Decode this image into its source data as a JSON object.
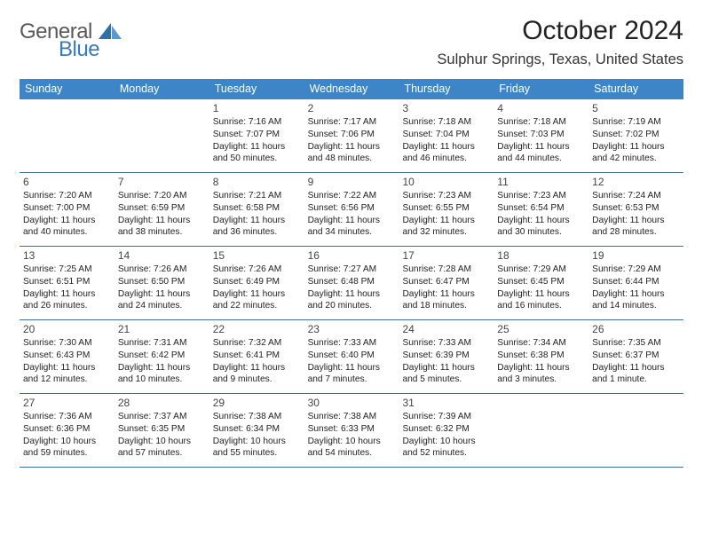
{
  "logo": {
    "word1": "General",
    "word2": "Blue"
  },
  "header": {
    "month_title": "October 2024",
    "location": "Sulphur Springs, Texas, United States"
  },
  "day_headers": [
    "Sunday",
    "Monday",
    "Tuesday",
    "Wednesday",
    "Thursday",
    "Friday",
    "Saturday"
  ],
  "colors": {
    "header_bg": "#3d85c6",
    "header_text": "#ffffff",
    "week_border": "#3d6d9a",
    "logo_general": "#5a5a5a",
    "logo_blue": "#3a7ab8",
    "text": "#222222",
    "daynum": "#444444",
    "background": "#ffffff"
  },
  "typography": {
    "month_title_fontsize": 30,
    "location_fontsize": 16.5,
    "header_cell_fontsize": 12.5,
    "daynum_fontsize": 12,
    "body_fontsize": 10.2,
    "logo_fontsize": 24
  },
  "weeks": [
    [
      null,
      null,
      {
        "num": "1",
        "sunrise": "Sunrise: 7:16 AM",
        "sunset": "Sunset: 7:07 PM",
        "day1": "Daylight: 11 hours",
        "day2": "and 50 minutes."
      },
      {
        "num": "2",
        "sunrise": "Sunrise: 7:17 AM",
        "sunset": "Sunset: 7:06 PM",
        "day1": "Daylight: 11 hours",
        "day2": "and 48 minutes."
      },
      {
        "num": "3",
        "sunrise": "Sunrise: 7:18 AM",
        "sunset": "Sunset: 7:04 PM",
        "day1": "Daylight: 11 hours",
        "day2": "and 46 minutes."
      },
      {
        "num": "4",
        "sunrise": "Sunrise: 7:18 AM",
        "sunset": "Sunset: 7:03 PM",
        "day1": "Daylight: 11 hours",
        "day2": "and 44 minutes."
      },
      {
        "num": "5",
        "sunrise": "Sunrise: 7:19 AM",
        "sunset": "Sunset: 7:02 PM",
        "day1": "Daylight: 11 hours",
        "day2": "and 42 minutes."
      }
    ],
    [
      {
        "num": "6",
        "sunrise": "Sunrise: 7:20 AM",
        "sunset": "Sunset: 7:00 PM",
        "day1": "Daylight: 11 hours",
        "day2": "and 40 minutes."
      },
      {
        "num": "7",
        "sunrise": "Sunrise: 7:20 AM",
        "sunset": "Sunset: 6:59 PM",
        "day1": "Daylight: 11 hours",
        "day2": "and 38 minutes."
      },
      {
        "num": "8",
        "sunrise": "Sunrise: 7:21 AM",
        "sunset": "Sunset: 6:58 PM",
        "day1": "Daylight: 11 hours",
        "day2": "and 36 minutes."
      },
      {
        "num": "9",
        "sunrise": "Sunrise: 7:22 AM",
        "sunset": "Sunset: 6:56 PM",
        "day1": "Daylight: 11 hours",
        "day2": "and 34 minutes."
      },
      {
        "num": "10",
        "sunrise": "Sunrise: 7:23 AM",
        "sunset": "Sunset: 6:55 PM",
        "day1": "Daylight: 11 hours",
        "day2": "and 32 minutes."
      },
      {
        "num": "11",
        "sunrise": "Sunrise: 7:23 AM",
        "sunset": "Sunset: 6:54 PM",
        "day1": "Daylight: 11 hours",
        "day2": "and 30 minutes."
      },
      {
        "num": "12",
        "sunrise": "Sunrise: 7:24 AM",
        "sunset": "Sunset: 6:53 PM",
        "day1": "Daylight: 11 hours",
        "day2": "and 28 minutes."
      }
    ],
    [
      {
        "num": "13",
        "sunrise": "Sunrise: 7:25 AM",
        "sunset": "Sunset: 6:51 PM",
        "day1": "Daylight: 11 hours",
        "day2": "and 26 minutes."
      },
      {
        "num": "14",
        "sunrise": "Sunrise: 7:26 AM",
        "sunset": "Sunset: 6:50 PM",
        "day1": "Daylight: 11 hours",
        "day2": "and 24 minutes."
      },
      {
        "num": "15",
        "sunrise": "Sunrise: 7:26 AM",
        "sunset": "Sunset: 6:49 PM",
        "day1": "Daylight: 11 hours",
        "day2": "and 22 minutes."
      },
      {
        "num": "16",
        "sunrise": "Sunrise: 7:27 AM",
        "sunset": "Sunset: 6:48 PM",
        "day1": "Daylight: 11 hours",
        "day2": "and 20 minutes."
      },
      {
        "num": "17",
        "sunrise": "Sunrise: 7:28 AM",
        "sunset": "Sunset: 6:47 PM",
        "day1": "Daylight: 11 hours",
        "day2": "and 18 minutes."
      },
      {
        "num": "18",
        "sunrise": "Sunrise: 7:29 AM",
        "sunset": "Sunset: 6:45 PM",
        "day1": "Daylight: 11 hours",
        "day2": "and 16 minutes."
      },
      {
        "num": "19",
        "sunrise": "Sunrise: 7:29 AM",
        "sunset": "Sunset: 6:44 PM",
        "day1": "Daylight: 11 hours",
        "day2": "and 14 minutes."
      }
    ],
    [
      {
        "num": "20",
        "sunrise": "Sunrise: 7:30 AM",
        "sunset": "Sunset: 6:43 PM",
        "day1": "Daylight: 11 hours",
        "day2": "and 12 minutes."
      },
      {
        "num": "21",
        "sunrise": "Sunrise: 7:31 AM",
        "sunset": "Sunset: 6:42 PM",
        "day1": "Daylight: 11 hours",
        "day2": "and 10 minutes."
      },
      {
        "num": "22",
        "sunrise": "Sunrise: 7:32 AM",
        "sunset": "Sunset: 6:41 PM",
        "day1": "Daylight: 11 hours",
        "day2": "and 9 minutes."
      },
      {
        "num": "23",
        "sunrise": "Sunrise: 7:33 AM",
        "sunset": "Sunset: 6:40 PM",
        "day1": "Daylight: 11 hours",
        "day2": "and 7 minutes."
      },
      {
        "num": "24",
        "sunrise": "Sunrise: 7:33 AM",
        "sunset": "Sunset: 6:39 PM",
        "day1": "Daylight: 11 hours",
        "day2": "and 5 minutes."
      },
      {
        "num": "25",
        "sunrise": "Sunrise: 7:34 AM",
        "sunset": "Sunset: 6:38 PM",
        "day1": "Daylight: 11 hours",
        "day2": "and 3 minutes."
      },
      {
        "num": "26",
        "sunrise": "Sunrise: 7:35 AM",
        "sunset": "Sunset: 6:37 PM",
        "day1": "Daylight: 11 hours",
        "day2": "and 1 minute."
      }
    ],
    [
      {
        "num": "27",
        "sunrise": "Sunrise: 7:36 AM",
        "sunset": "Sunset: 6:36 PM",
        "day1": "Daylight: 10 hours",
        "day2": "and 59 minutes."
      },
      {
        "num": "28",
        "sunrise": "Sunrise: 7:37 AM",
        "sunset": "Sunset: 6:35 PM",
        "day1": "Daylight: 10 hours",
        "day2": "and 57 minutes."
      },
      {
        "num": "29",
        "sunrise": "Sunrise: 7:38 AM",
        "sunset": "Sunset: 6:34 PM",
        "day1": "Daylight: 10 hours",
        "day2": "and 55 minutes."
      },
      {
        "num": "30",
        "sunrise": "Sunrise: 7:38 AM",
        "sunset": "Sunset: 6:33 PM",
        "day1": "Daylight: 10 hours",
        "day2": "and 54 minutes."
      },
      {
        "num": "31",
        "sunrise": "Sunrise: 7:39 AM",
        "sunset": "Sunset: 6:32 PM",
        "day1": "Daylight: 10 hours",
        "day2": "and 52 minutes."
      },
      null,
      null
    ]
  ]
}
